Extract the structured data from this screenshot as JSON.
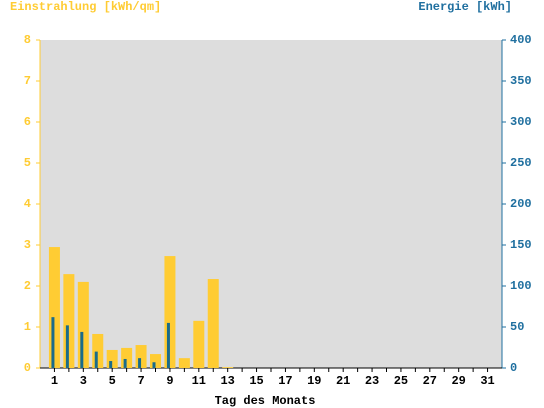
{
  "chart_data": {
    "type": "bar",
    "ylabel": "Einstrahlung [kWh/qm]",
    "y2label": "Energie [kWh]",
    "xlabel": "Tag des Monats",
    "categories": [
      1,
      null,
      3,
      null,
      5,
      null,
      7,
      null,
      9,
      null,
      11,
      null,
      13,
      null,
      15,
      null,
      17,
      null,
      19,
      null,
      21,
      null,
      23,
      null,
      25,
      null,
      27,
      null,
      29,
      null,
      31
    ],
    "series": [
      {
        "color": "#ffcc33",
        "values": [
          2.95,
          2.29,
          2.1,
          0.83,
          0.44,
          0.49,
          0.56,
          0.34,
          2.73,
          0.24,
          1.15,
          2.17,
          0.02,
          null,
          null,
          null,
          null,
          null,
          null,
          null,
          null,
          null,
          null,
          null,
          null,
          null,
          null,
          null,
          null,
          null,
          null
        ]
      },
      {
        "color": "#1a6b8a",
        "axis": "y2",
        "values": [
          62,
          52,
          44,
          20,
          8.5,
          11,
          12,
          7,
          55,
          null,
          null,
          null,
          null,
          null,
          null,
          null,
          null,
          null,
          null,
          null,
          null,
          null,
          null,
          null,
          null,
          null,
          null,
          null,
          null,
          null,
          null
        ]
      }
    ],
    "ylim": [
      0,
      8
    ],
    "yticks": [
      0,
      1,
      2,
      3,
      4,
      5,
      6,
      7,
      8
    ],
    "y2lim": [
      0,
      400
    ],
    "y2ticks": [
      0,
      50,
      100,
      150,
      200,
      250,
      300,
      350,
      400
    ],
    "ytick_color": "#ffcc33",
    "y2tick_color": "#1f6f9f",
    "plot_background": "#dddddd"
  }
}
